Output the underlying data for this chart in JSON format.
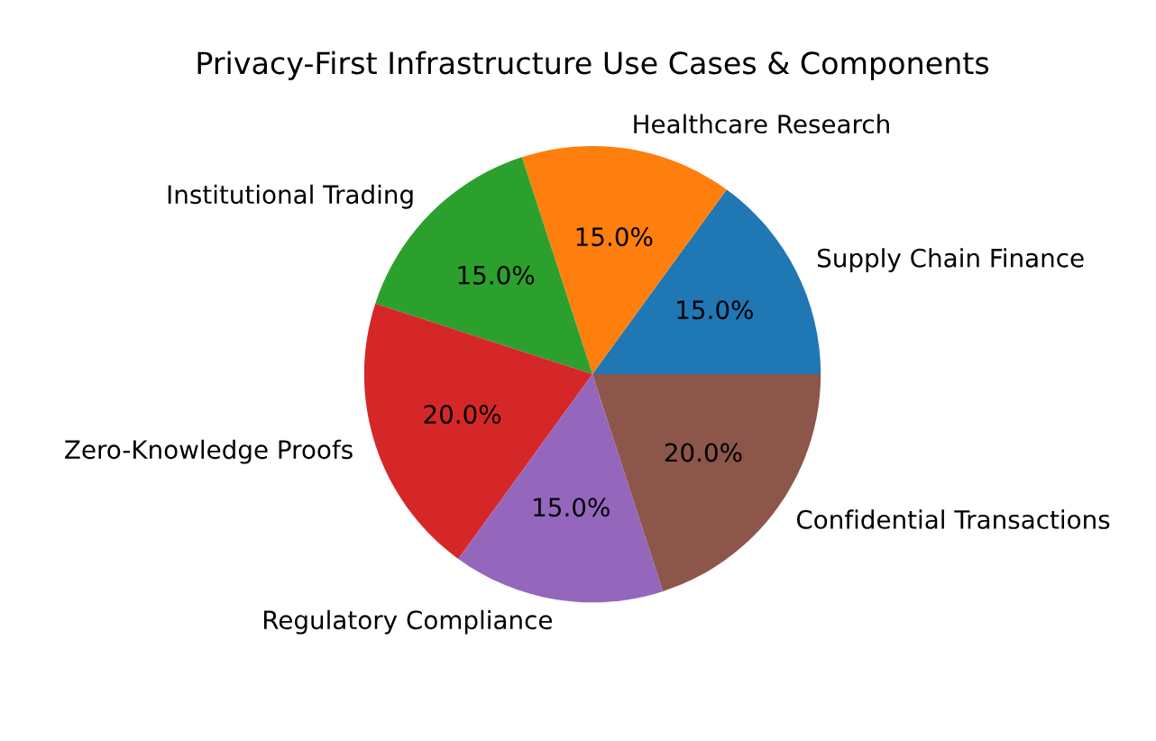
{
  "chart_data": {
    "type": "pie",
    "title": "Privacy-First Infrastructure Use Cases & Components",
    "categories": [
      "Supply Chain Finance",
      "Healthcare Research",
      "Institutional Trading",
      "Zero-Knowledge Proofs",
      "Regulatory Compliance",
      "Confidential Transactions"
    ],
    "values": [
      15,
      15,
      15,
      20,
      15,
      20
    ],
    "colors": [
      "#1f77b4",
      "#ff7f0e",
      "#2ca02c",
      "#d62728",
      "#9467bd",
      "#8c564b"
    ],
    "value_labels": [
      "15.0%",
      "15.0%",
      "15.0%",
      "20.0%",
      "15.0%",
      "20.0%"
    ]
  }
}
